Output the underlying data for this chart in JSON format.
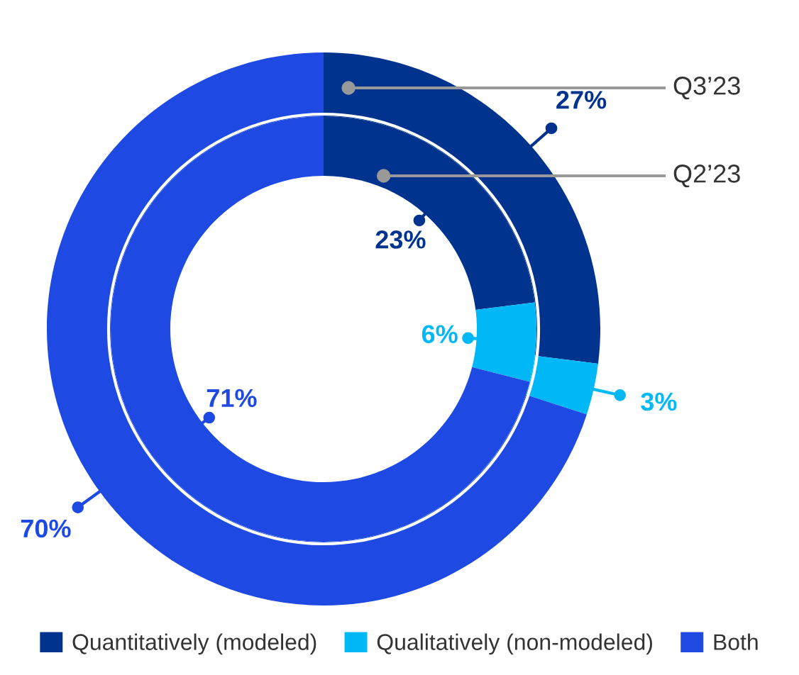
{
  "chart_data": {
    "type": "donut",
    "categories": [
      "Quantitatively (modeled)",
      "Qualitatively (non-modeled)",
      "Both"
    ],
    "colors": [
      "#00338d",
      "#00b8f5",
      "#1e49e2"
    ],
    "series": [
      {
        "name": "Q3’23",
        "values": [
          27,
          3,
          70
        ]
      },
      {
        "name": "Q2’23",
        "values": [
          23,
          6,
          71
        ]
      }
    ],
    "value_labels": [
      [
        "27%",
        "3%",
        "70%"
      ],
      [
        "23%",
        "6%",
        "71%"
      ]
    ],
    "legend": "bottom"
  }
}
